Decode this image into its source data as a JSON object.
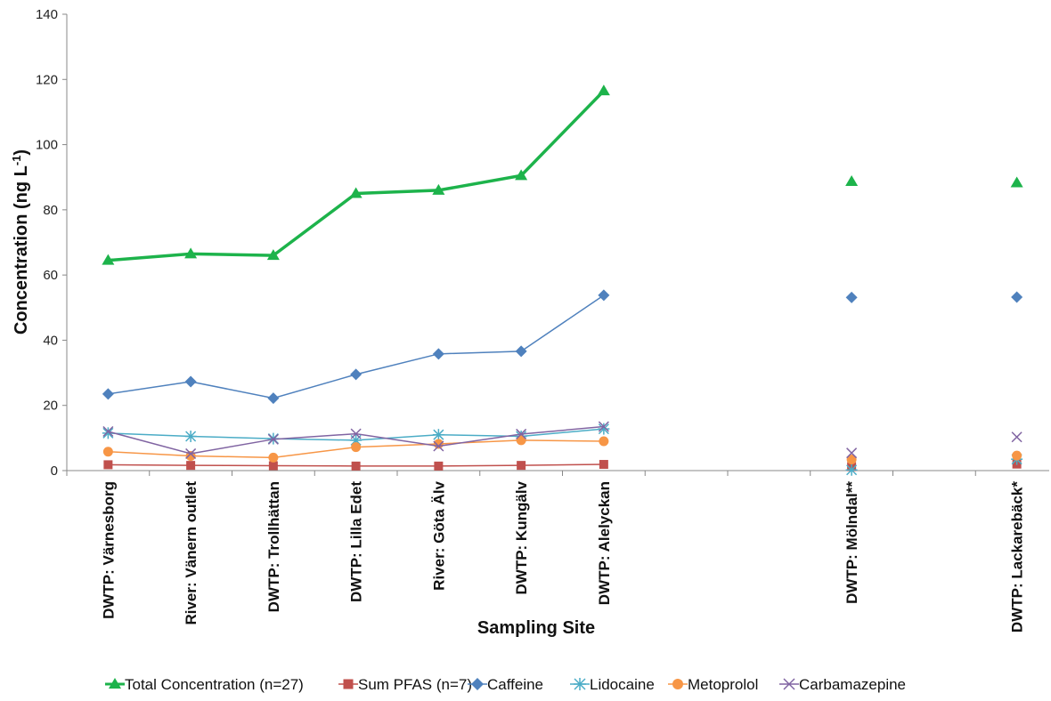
{
  "chart_data": {
    "type": "line",
    "xlabel": "Sampling Site",
    "ylabel_main": "Concentration (ng L",
    "ylabel_sup": "-1",
    "ylabel_close": ")",
    "ylim": [
      0,
      140
    ],
    "yticks": [
      "0",
      "20",
      "40",
      "60",
      "80",
      "100",
      "120",
      "140"
    ],
    "categories": [
      "DWTP: Värnesborg",
      "River: Vänern outlet",
      "DWTP: Trollhättan",
      "DWTP: Lilla Edet",
      "River: Göta Älv",
      "DWTP: Kungälv",
      "DWTP: Alelyckan",
      "",
      "",
      "DWTP: Mölndal**",
      "",
      "DWTP: Lackarebäck*"
    ],
    "connected_through_index": 6,
    "grid": false,
    "legend_position": "bottom",
    "series": [
      {
        "name": "Total Concentration (n=27)",
        "color": "#1db34b",
        "marker": "triangle",
        "values": [
          64.5,
          66.5,
          66,
          85,
          86,
          90.5,
          116.5,
          null,
          null,
          88.7,
          null,
          88.3
        ]
      },
      {
        "name": "Sum PFAS (n=7)",
        "color": "#c0504d",
        "marker": "square",
        "values": [
          1.8,
          1.6,
          1.5,
          1.4,
          1.4,
          1.6,
          1.9,
          null,
          null,
          1.2,
          null,
          2.0
        ]
      },
      {
        "name": "Caffeine",
        "color": "#4f81bd",
        "marker": "diamond",
        "values": [
          23.5,
          27.3,
          22.2,
          29.5,
          35.8,
          36.6,
          53.8,
          null,
          null,
          53.1,
          null,
          53.2
        ]
      },
      {
        "name": "Lidocaine",
        "color": "#4bacc6",
        "marker": "star",
        "values": [
          11.5,
          10.5,
          9.8,
          9.3,
          11.0,
          10.5,
          12.8,
          null,
          null,
          0.2,
          null,
          3.5
        ]
      },
      {
        "name": "Metoprolol",
        "color": "#f79646",
        "marker": "circle",
        "values": [
          5.8,
          4.5,
          4.0,
          7.2,
          8.2,
          9.3,
          9.0,
          null,
          null,
          3.4,
          null,
          4.6
        ]
      },
      {
        "name": "Carbamazepine",
        "color": "#8064a2",
        "marker": "x",
        "values": [
          12.0,
          5.2,
          9.6,
          11.3,
          7.5,
          11.2,
          13.5,
          null,
          null,
          5.4,
          null,
          10.3
        ]
      }
    ]
  }
}
